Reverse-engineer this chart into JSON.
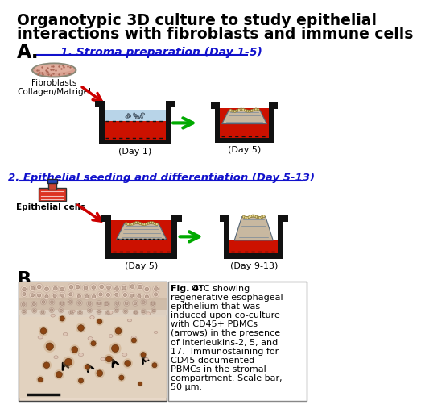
{
  "title_line1": "Organotypic 3D culture to study epithelial",
  "title_line2": "interactions with fibroblasts and immune cells",
  "section_a_label": "A.",
  "section_b_label": "B.",
  "step1_title": "1. Stroma preparation (Day 1-5)",
  "step2_title": "2. Epithelial seeding and differentiation (Day 5-13)",
  "step1_label1": "Fibroblasts\nCollagen/Matrigel",
  "step2_label1": "Epithelial cells",
  "day1_label": "(Day 1)",
  "day5_label": "(Day 5)",
  "day5b_label": "(Day 5)",
  "day913_label": "(Day 9-13)",
  "fig4_bold": "Fig. 4:",
  "fig4_rest": " OTC showing regenerative esophageal epithelium that was induced upon co-culture with CD45+ PBMCs (arrows) in the presence of interleukins-2, 5, and 17.  Immunostaining for CD45 documented PBMCs in the stromal compartment. Scale bar, 50 μm.",
  "fig4_lines": [
    "OTC showing",
    "regenerative esophageal",
    "epithelium that was",
    "induced upon co-culture",
    "with CD45+ PBMCs",
    "(arrows) in the presence",
    "of interleukins-2, 5, and",
    "17.  Immunostaining for",
    "CD45 documented",
    "PBMCs in the stromal",
    "compartment. Scale bar,",
    "50 μm."
  ],
  "bg_color": "#ffffff",
  "title_color": "#000000",
  "step_title_color": "#1111cc",
  "underline_color": "#1111cc",
  "red_arrow_color": "#cc0000",
  "green_arrow_color": "#00aa00",
  "wall_color": "#111111",
  "liquid_red": "#cc1100",
  "liquid_blue": "#b8d4e8",
  "stroma_color": "#c8b8a0",
  "epi_color": "#e8d890"
}
